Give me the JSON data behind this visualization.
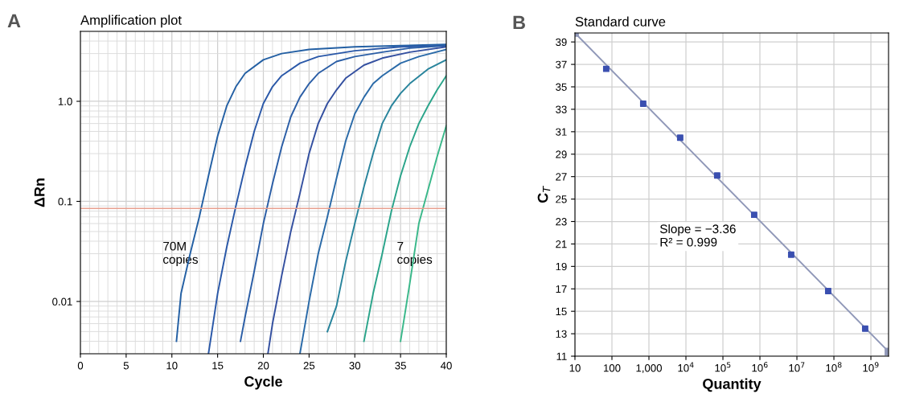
{
  "chart_data": [
    {
      "type": "line",
      "title": "Amplification plot",
      "xlabel": "Cycle",
      "ylabel": "ΔRn",
      "log": "y",
      "grid": true,
      "legend": false,
      "marker": "none",
      "line_style": "solid",
      "xlim": [
        0,
        40
      ],
      "xticks": [
        0,
        5,
        10,
        15,
        20,
        25,
        30,
        35,
        40
      ],
      "ylim": [
        0.003,
        5
      ],
      "yticks": [
        0.01,
        0.1,
        {
          "value": 1,
          "label": "1.0"
        }
      ],
      "ref_lines": [
        {
          "axis": "y",
          "value": 0.085,
          "color": "#e8a090"
        }
      ],
      "annotations": [
        "A",
        "70M\ncopies",
        "7\ncopies"
      ],
      "series": [
        {
          "color": "#2460a4",
          "x": [
            10.5,
            11,
            12,
            13,
            14,
            15,
            16,
            17,
            18,
            20,
            22,
            25,
            30,
            35,
            40
          ],
          "values": [
            0.004,
            0.012,
            0.03,
            0.07,
            0.18,
            0.45,
            0.9,
            1.4,
            1.9,
            2.6,
            3.0,
            3.3,
            3.5,
            3.6,
            3.7
          ]
        },
        {
          "color": "#2a58a8",
          "x": [
            14,
            14.5,
            15,
            16,
            17,
            18,
            19,
            20,
            21,
            22,
            24,
            26,
            30,
            35,
            40
          ],
          "values": [
            0.003,
            0.006,
            0.012,
            0.035,
            0.09,
            0.22,
            0.5,
            0.95,
            1.4,
            1.8,
            2.4,
            2.8,
            3.2,
            3.5,
            3.6
          ]
        },
        {
          "color": "#2b5ea6",
          "x": [
            17.5,
            18,
            19,
            20,
            21,
            22,
            23,
            24,
            25,
            26,
            28,
            30,
            33,
            36,
            40
          ],
          "values": [
            0.004,
            0.007,
            0.02,
            0.06,
            0.15,
            0.35,
            0.7,
            1.1,
            1.5,
            1.9,
            2.5,
            2.8,
            3.1,
            3.4,
            3.6
          ]
        },
        {
          "color": "#3450a0",
          "x": [
            20.5,
            21,
            22,
            23,
            24,
            25,
            26,
            27,
            28,
            29,
            31,
            33,
            36,
            40
          ],
          "values": [
            0.003,
            0.006,
            0.018,
            0.05,
            0.12,
            0.3,
            0.6,
            0.95,
            1.3,
            1.7,
            2.3,
            2.7,
            3.1,
            3.5
          ]
        },
        {
          "color": "#2a6aa8",
          "x": [
            24,
            25,
            26,
            27,
            28,
            29,
            30,
            31,
            32,
            33,
            35,
            37,
            40
          ],
          "values": [
            0.003,
            0.01,
            0.03,
            0.07,
            0.17,
            0.4,
            0.75,
            1.1,
            1.5,
            1.8,
            2.4,
            2.8,
            3.3
          ]
        },
        {
          "color": "#28849c",
          "x": [
            27,
            28,
            29,
            30,
            31,
            32,
            33,
            34,
            35,
            36,
            38,
            40
          ],
          "values": [
            0.005,
            0.009,
            0.025,
            0.06,
            0.14,
            0.3,
            0.6,
            0.9,
            1.2,
            1.5,
            2.1,
            2.6
          ]
        },
        {
          "color": "#2aa48a",
          "x": [
            31,
            32,
            33,
            34,
            35,
            36,
            37,
            38,
            39,
            40
          ],
          "values": [
            0.004,
            0.012,
            0.03,
            0.08,
            0.18,
            0.35,
            0.6,
            0.9,
            1.3,
            1.8
          ]
        },
        {
          "color": "#3ab88a",
          "x": [
            35,
            36,
            37,
            38,
            39,
            40
          ],
          "values": [
            0.004,
            0.015,
            0.06,
            0.13,
            0.28,
            0.57
          ]
        }
      ]
    },
    {
      "type": "scatter",
      "title": "Standard curve",
      "xlabel": "Quantity",
      "ylabel": "C$_{T}$",
      "log": "x",
      "grid": true,
      "legend": false,
      "marker": "square",
      "xlim": [
        10,
        3000000000
      ],
      "xticks": [
        10,
        100,
        {
          "value": 1000,
          "label": "1,000"
        },
        {
          "value": 10000,
          "label": "10$^{4}$"
        },
        {
          "value": 100000,
          "label": "10$^{5}$"
        },
        {
          "value": 1000000,
          "label": "10$^{6}$"
        },
        {
          "value": 10000000,
          "label": "10$^{7}$"
        },
        {
          "value": 100000000,
          "label": "10$^{8}$"
        },
        {
          "value": 1000000000,
          "label": "10$^{9}$"
        }
      ],
      "ylim": [
        11,
        39.8
      ],
      "yticks": [
        11,
        13,
        15,
        17,
        19,
        21,
        23,
        25,
        27,
        29,
        31,
        33,
        35,
        37,
        39
      ],
      "annotations": [
        "B",
        "Slope = −3.36\nR² = 0.999"
      ],
      "series": [
        {
          "type": "line",
          "color": "#9098b8",
          "x": [
            10,
            3000000000
          ],
          "values": [
            39.8,
            11.4
          ]
        },
        {
          "type": "scatter",
          "color": "#3a4fb0",
          "x": [
            70,
            700,
            7000,
            70000,
            700000,
            7000000,
            70000000,
            700000000
          ],
          "values": [
            36.6,
            33.5,
            30.47,
            27.1,
            23.6,
            20.05,
            16.8,
            13.45
          ]
        }
      ]
    }
  ]
}
